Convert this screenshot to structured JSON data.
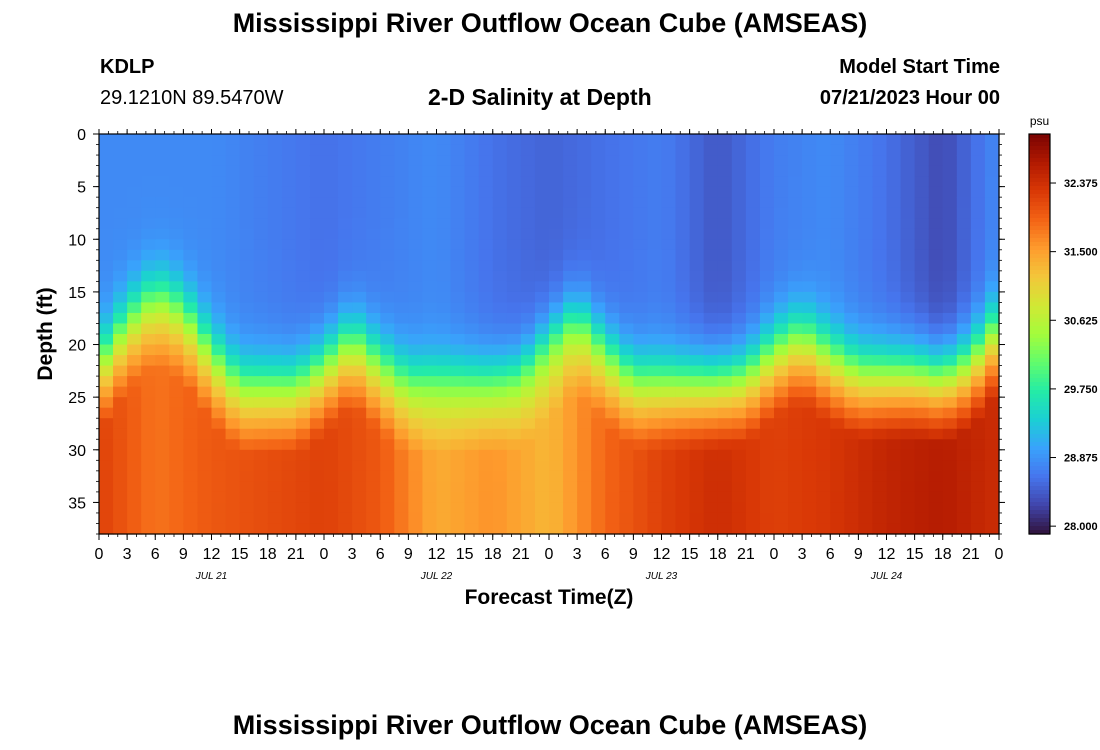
{
  "page": {
    "title": "Mississippi River Outflow Ocean Cube (AMSEAS)",
    "footer_title": "Mississippi River Outflow Ocean Cube (AMSEAS)",
    "station": "KDLP",
    "coords": "29.1210N  89.5470W",
    "subtitle": "2-D Salinity at Depth",
    "model_start_label": "Model Start Time",
    "model_start_value": "07/21/2023 Hour 00"
  },
  "chart_data": {
    "type": "heatmap",
    "title": "2-D Salinity at Depth",
    "xlabel": "Forecast Time(Z)",
    "ylabel": "Depth (ft)",
    "x_range": [
      0,
      96
    ],
    "ylim": [
      0,
      38
    ],
    "y_reversed": true,
    "x_ticks": [
      0,
      3,
      6,
      9,
      12,
      15,
      18,
      21,
      24,
      27,
      30,
      33,
      36,
      39,
      42,
      45,
      48,
      51,
      54,
      57,
      60,
      63,
      66,
      69,
      72,
      75,
      78,
      81,
      84,
      87,
      90,
      93,
      96
    ],
    "x_tick_labels": [
      "0",
      "3",
      "6",
      "9",
      "12",
      "15",
      "18",
      "21",
      "0",
      "3",
      "6",
      "9",
      "12",
      "15",
      "18",
      "21",
      "0",
      "3",
      "6",
      "9",
      "12",
      "15",
      "18",
      "21",
      "0",
      "3",
      "6",
      "9",
      "12",
      "15",
      "18",
      "21",
      "0"
    ],
    "date_labels": [
      {
        "label": "JUL 21",
        "x": 12
      },
      {
        "label": "JUL 22",
        "x": 36
      },
      {
        "label": "JUL 23",
        "x": 60
      },
      {
        "label": "JUL 24",
        "x": 84
      }
    ],
    "y_ticks": [
      0,
      5,
      10,
      15,
      20,
      25,
      30,
      35
    ],
    "colorbar": {
      "unit": "psu",
      "min": 27.9,
      "max": 33.0,
      "ticks": [
        28.0,
        28.875,
        29.75,
        30.625,
        31.5,
        32.375
      ],
      "tick_labels": [
        "28.000",
        "28.875",
        "29.750",
        "30.625",
        "31.500",
        "32.375"
      ],
      "colormap": [
        "#30123b",
        "#4145ab",
        "#4675ed",
        "#39a2fc",
        "#1bcfd4",
        "#24eca6",
        "#61fc6c",
        "#a4fc3b",
        "#d1e834",
        "#f3c63a",
        "#fe9b2d",
        "#f36315",
        "#d93806",
        "#b11901",
        "#7a0402"
      ]
    },
    "halocline_depth_ft": {
      "x": [
        0,
        3,
        6,
        9,
        12,
        15,
        18,
        21,
        24,
        27,
        30,
        33,
        36,
        39,
        42,
        45,
        48,
        51,
        54,
        57,
        60,
        63,
        66,
        69,
        72,
        75,
        78,
        81,
        84,
        87,
        90,
        93,
        96
      ],
      "y": [
        20.5,
        16.5,
        14,
        15.5,
        19.5,
        22.5,
        22.5,
        22.5,
        20.5,
        18,
        20.5,
        22.5,
        22.5,
        22.5,
        22.5,
        22,
        19,
        16.5,
        19.5,
        22,
        22,
        22,
        22,
        21.5,
        19,
        17.5,
        19.5,
        21,
        21,
        21,
        21.5,
        20,
        16.5
      ]
    },
    "surface_salinity_psu": {
      "x": [
        0,
        6,
        12,
        18,
        24,
        30,
        36,
        42,
        48,
        54,
        60,
        66,
        72,
        78,
        84,
        90,
        96
      ],
      "y": [
        28.8,
        28.8,
        28.8,
        28.7,
        28.6,
        28.7,
        28.8,
        28.6,
        28.5,
        28.6,
        28.7,
        28.4,
        28.7,
        28.8,
        28.6,
        28.3,
        28.8
      ]
    },
    "bottom_salinity_psu": {
      "x": [
        0,
        6,
        12,
        18,
        24,
        30,
        36,
        42,
        48,
        54,
        60,
        66,
        72,
        78,
        84,
        90,
        96
      ],
      "y": [
        32.2,
        31.8,
        32.0,
        32.1,
        32.2,
        32.0,
        31.4,
        31.6,
        31.3,
        31.9,
        32.2,
        32.4,
        32.2,
        32.3,
        32.5,
        32.6,
        32.4
      ]
    }
  }
}
